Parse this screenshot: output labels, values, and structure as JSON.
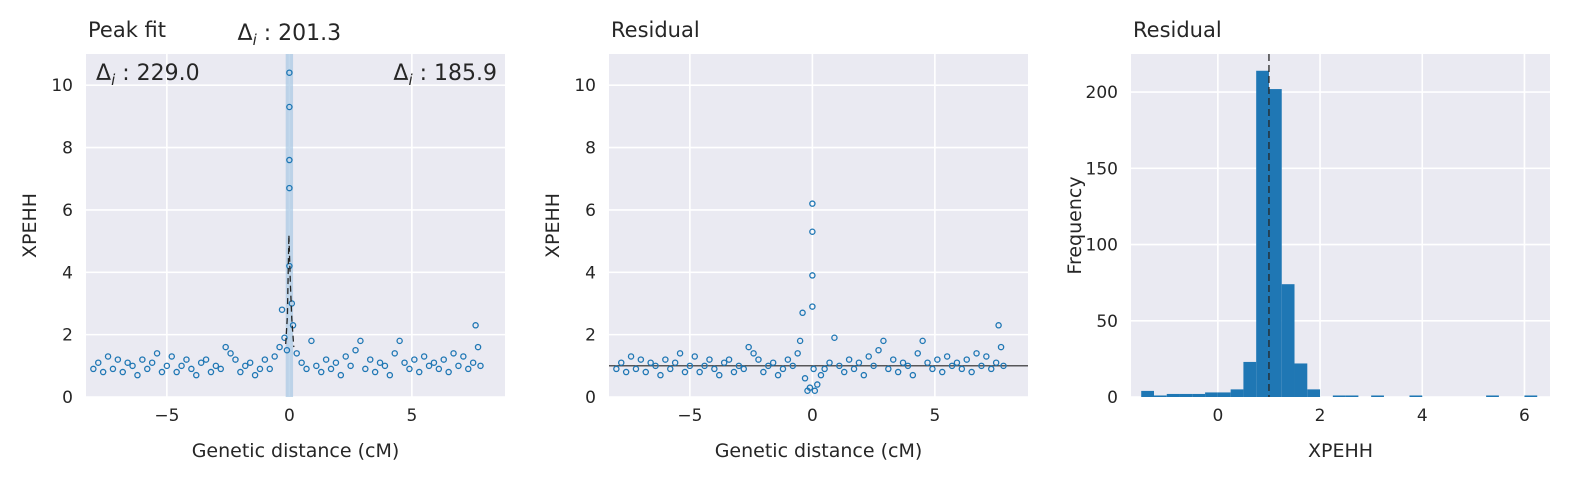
{
  "chart_data": [
    {
      "type": "scatter",
      "title": "Peak fit",
      "xlabel": "Genetic distance (cM)",
      "ylabel": "XPEHH",
      "xlim": [
        -8.3,
        8.8
      ],
      "ylim": [
        0,
        11
      ],
      "xticks": [
        -5,
        0,
        5
      ],
      "xtick_labels": [
        "−5",
        "0",
        "5"
      ],
      "yticks": [
        0,
        2,
        4,
        6,
        8,
        10
      ],
      "ytick_labels": [
        "0",
        "2",
        "4",
        "6",
        "8",
        "10"
      ],
      "grid": true,
      "annotations": {
        "top": {
          "symbol": "Δ",
          "sub": "i",
          "text": " : 201.3"
        },
        "left": {
          "symbol": "Δ",
          "sub": "i",
          "text": " : 229.0"
        },
        "right": {
          "symbol": "Δ",
          "sub": "i",
          "text": " : 185.9"
        }
      },
      "shaded_band": [
        -0.15,
        0.15
      ],
      "scatter_points": [
        [
          -8.0,
          0.9
        ],
        [
          -7.8,
          1.1
        ],
        [
          -7.6,
          0.8
        ],
        [
          -7.4,
          1.3
        ],
        [
          -7.2,
          0.9
        ],
        [
          -7.0,
          1.2
        ],
        [
          -6.8,
          0.8
        ],
        [
          -6.6,
          1.1
        ],
        [
          -6.4,
          1.0
        ],
        [
          -6.2,
          0.7
        ],
        [
          -6.0,
          1.2
        ],
        [
          -5.8,
          0.9
        ],
        [
          -5.6,
          1.1
        ],
        [
          -5.4,
          1.4
        ],
        [
          -5.2,
          0.8
        ],
        [
          -5.0,
          1.0
        ],
        [
          -4.8,
          1.3
        ],
        [
          -4.6,
          0.8
        ],
        [
          -4.4,
          1.0
        ],
        [
          -4.2,
          1.2
        ],
        [
          -4.0,
          0.9
        ],
        [
          -3.8,
          0.7
        ],
        [
          -3.6,
          1.1
        ],
        [
          -3.4,
          1.2
        ],
        [
          -3.2,
          0.8
        ],
        [
          -3.0,
          1.0
        ],
        [
          -2.8,
          0.9
        ],
        [
          -2.6,
          1.6
        ],
        [
          -2.4,
          1.4
        ],
        [
          -2.2,
          1.2
        ],
        [
          -2.0,
          0.8
        ],
        [
          -1.8,
          1.0
        ],
        [
          -1.6,
          1.1
        ],
        [
          -1.4,
          0.7
        ],
        [
          -1.2,
          0.9
        ],
        [
          -1.0,
          1.2
        ],
        [
          -0.8,
          0.9
        ],
        [
          -0.6,
          1.3
        ],
        [
          -0.4,
          1.6
        ],
        [
          -0.3,
          2.8
        ],
        [
          -0.2,
          1.9
        ],
        [
          -0.1,
          1.5
        ],
        [
          0.0,
          10.4
        ],
        [
          0.0,
          9.3
        ],
        [
          0.0,
          7.6
        ],
        [
          0.0,
          6.7
        ],
        [
          0.0,
          4.2
        ],
        [
          0.1,
          3.0
        ],
        [
          0.15,
          2.3
        ],
        [
          0.3,
          1.4
        ],
        [
          0.5,
          1.1
        ],
        [
          0.7,
          0.9
        ],
        [
          0.9,
          1.8
        ],
        [
          1.1,
          1.0
        ],
        [
          1.3,
          0.8
        ],
        [
          1.5,
          1.2
        ],
        [
          1.7,
          0.9
        ],
        [
          1.9,
          1.1
        ],
        [
          2.1,
          0.7
        ],
        [
          2.3,
          1.3
        ],
        [
          2.5,
          1.0
        ],
        [
          2.7,
          1.5
        ],
        [
          2.9,
          1.8
        ],
        [
          3.1,
          0.9
        ],
        [
          3.3,
          1.2
        ],
        [
          3.5,
          0.8
        ],
        [
          3.7,
          1.1
        ],
        [
          3.9,
          1.0
        ],
        [
          4.1,
          0.7
        ],
        [
          4.3,
          1.4
        ],
        [
          4.5,
          1.8
        ],
        [
          4.7,
          1.1
        ],
        [
          4.9,
          0.9
        ],
        [
          5.1,
          1.2
        ],
        [
          5.3,
          0.8
        ],
        [
          5.5,
          1.3
        ],
        [
          5.7,
          1.0
        ],
        [
          5.9,
          1.1
        ],
        [
          6.1,
          0.9
        ],
        [
          6.3,
          1.2
        ],
        [
          6.5,
          0.8
        ],
        [
          6.7,
          1.4
        ],
        [
          6.9,
          1.0
        ],
        [
          7.1,
          1.3
        ],
        [
          7.3,
          0.9
        ],
        [
          7.5,
          1.1
        ],
        [
          7.6,
          2.3
        ],
        [
          7.7,
          1.6
        ],
        [
          7.8,
          1.0
        ]
      ],
      "fit_line": [
        [
          -0.15,
          1.7
        ],
        [
          -0.08,
          2.6
        ],
        [
          -0.02,
          5.2
        ],
        [
          0.04,
          3.6
        ],
        [
          0.1,
          2.5
        ],
        [
          0.18,
          1.6
        ]
      ]
    },
    {
      "type": "scatter",
      "title": "Residual",
      "xlabel": "Genetic distance (cM)",
      "ylabel": "XPEHH",
      "xlim": [
        -8.3,
        8.8
      ],
      "ylim": [
        0,
        11
      ],
      "xticks": [
        -5,
        0,
        5
      ],
      "xtick_labels": [
        "−5",
        "0",
        "5"
      ],
      "yticks": [
        0,
        2,
        4,
        6,
        8,
        10
      ],
      "ytick_labels": [
        "0",
        "2",
        "4",
        "6",
        "8",
        "10"
      ],
      "grid": true,
      "hline": 1.0,
      "scatter_points": [
        [
          -8.0,
          0.9
        ],
        [
          -7.8,
          1.1
        ],
        [
          -7.6,
          0.8
        ],
        [
          -7.4,
          1.3
        ],
        [
          -7.2,
          0.9
        ],
        [
          -7.0,
          1.2
        ],
        [
          -6.8,
          0.8
        ],
        [
          -6.6,
          1.1
        ],
        [
          -6.4,
          1.0
        ],
        [
          -6.2,
          0.7
        ],
        [
          -6.0,
          1.2
        ],
        [
          -5.8,
          0.9
        ],
        [
          -5.6,
          1.1
        ],
        [
          -5.4,
          1.4
        ],
        [
          -5.2,
          0.8
        ],
        [
          -5.0,
          1.0
        ],
        [
          -4.8,
          1.3
        ],
        [
          -4.6,
          0.8
        ],
        [
          -4.4,
          1.0
        ],
        [
          -4.2,
          1.2
        ],
        [
          -4.0,
          0.9
        ],
        [
          -3.8,
          0.7
        ],
        [
          -3.6,
          1.1
        ],
        [
          -3.4,
          1.2
        ],
        [
          -3.2,
          0.8
        ],
        [
          -3.0,
          1.0
        ],
        [
          -2.8,
          0.9
        ],
        [
          -2.6,
          1.6
        ],
        [
          -2.4,
          1.4
        ],
        [
          -2.2,
          1.2
        ],
        [
          -2.0,
          0.8
        ],
        [
          -1.8,
          1.0
        ],
        [
          -1.6,
          1.1
        ],
        [
          -1.4,
          0.7
        ],
        [
          -1.2,
          0.9
        ],
        [
          -1.0,
          1.2
        ],
        [
          -0.8,
          1.0
        ],
        [
          -0.6,
          1.4
        ],
        [
          -0.5,
          1.8
        ],
        [
          -0.4,
          2.7
        ],
        [
          -0.3,
          0.6
        ],
        [
          -0.2,
          0.2
        ],
        [
          -0.1,
          0.3
        ],
        [
          0.0,
          6.2
        ],
        [
          0.0,
          5.3
        ],
        [
          0.0,
          3.9
        ],
        [
          0.0,
          2.9
        ],
        [
          0.05,
          0.9
        ],
        [
          0.1,
          0.2
        ],
        [
          0.2,
          0.4
        ],
        [
          0.35,
          0.7
        ],
        [
          0.5,
          0.9
        ],
        [
          0.7,
          1.1
        ],
        [
          0.9,
          1.9
        ],
        [
          1.1,
          1.0
        ],
        [
          1.3,
          0.8
        ],
        [
          1.5,
          1.2
        ],
        [
          1.7,
          0.9
        ],
        [
          1.9,
          1.1
        ],
        [
          2.1,
          0.7
        ],
        [
          2.3,
          1.3
        ],
        [
          2.5,
          1.0
        ],
        [
          2.7,
          1.5
        ],
        [
          2.9,
          1.8
        ],
        [
          3.1,
          0.9
        ],
        [
          3.3,
          1.2
        ],
        [
          3.5,
          0.8
        ],
        [
          3.7,
          1.1
        ],
        [
          3.9,
          1.0
        ],
        [
          4.1,
          0.7
        ],
        [
          4.3,
          1.4
        ],
        [
          4.5,
          1.8
        ],
        [
          4.7,
          1.1
        ],
        [
          4.9,
          0.9
        ],
        [
          5.1,
          1.2
        ],
        [
          5.3,
          0.8
        ],
        [
          5.5,
          1.3
        ],
        [
          5.7,
          1.0
        ],
        [
          5.9,
          1.1
        ],
        [
          6.1,
          0.9
        ],
        [
          6.3,
          1.2
        ],
        [
          6.5,
          0.8
        ],
        [
          6.7,
          1.4
        ],
        [
          6.9,
          1.0
        ],
        [
          7.1,
          1.3
        ],
        [
          7.3,
          0.9
        ],
        [
          7.5,
          1.1
        ],
        [
          7.6,
          2.3
        ],
        [
          7.7,
          1.6
        ],
        [
          7.8,
          1.0
        ]
      ]
    },
    {
      "type": "bar",
      "title": "Residual",
      "xlabel": "XPEHH",
      "ylabel": "Frequency",
      "xlim": [
        -1.7,
        6.5
      ],
      "ylim": [
        0,
        225
      ],
      "xticks": [
        0,
        2,
        4,
        6
      ],
      "xtick_labels": [
        "0",
        "2",
        "4",
        "6"
      ],
      "yticks": [
        0,
        50,
        100,
        150,
        200
      ],
      "ytick_labels": [
        "0",
        "50",
        "100",
        "150",
        "200"
      ],
      "grid": true,
      "vline": 1.0,
      "bin_width": 0.25,
      "bins": [
        {
          "x": -1.375,
          "value": 4
        },
        {
          "x": -1.125,
          "value": 1
        },
        {
          "x": -0.875,
          "value": 2
        },
        {
          "x": -0.625,
          "value": 2
        },
        {
          "x": -0.375,
          "value": 2
        },
        {
          "x": -0.125,
          "value": 3
        },
        {
          "x": 0.125,
          "value": 3
        },
        {
          "x": 0.375,
          "value": 5
        },
        {
          "x": 0.625,
          "value": 23
        },
        {
          "x": 0.875,
          "value": 214
        },
        {
          "x": 1.125,
          "value": 202
        },
        {
          "x": 1.375,
          "value": 74
        },
        {
          "x": 1.625,
          "value": 22
        },
        {
          "x": 1.875,
          "value": 5
        },
        {
          "x": 2.125,
          "value": 0
        },
        {
          "x": 2.375,
          "value": 1
        },
        {
          "x": 2.625,
          "value": 1
        },
        {
          "x": 2.875,
          "value": 0
        },
        {
          "x": 3.125,
          "value": 1
        },
        {
          "x": 3.375,
          "value": 0
        },
        {
          "x": 3.625,
          "value": 0
        },
        {
          "x": 3.875,
          "value": 1
        },
        {
          "x": 4.125,
          "value": 0
        },
        {
          "x": 4.375,
          "value": 0
        },
        {
          "x": 4.625,
          "value": 0
        },
        {
          "x": 4.875,
          "value": 0
        },
        {
          "x": 5.125,
          "value": 0
        },
        {
          "x": 5.375,
          "value": 1
        },
        {
          "x": 5.625,
          "value": 0
        },
        {
          "x": 5.875,
          "value": 0
        },
        {
          "x": 6.125,
          "value": 1
        }
      ]
    }
  ],
  "colors": {
    "axes_bg": "#eaeaf2",
    "grid": "#ffffff",
    "points": "#1f77b4",
    "bars": "#1f77b4",
    "band": "#a8c8e4",
    "line": "#262626",
    "text": "#262626"
  }
}
